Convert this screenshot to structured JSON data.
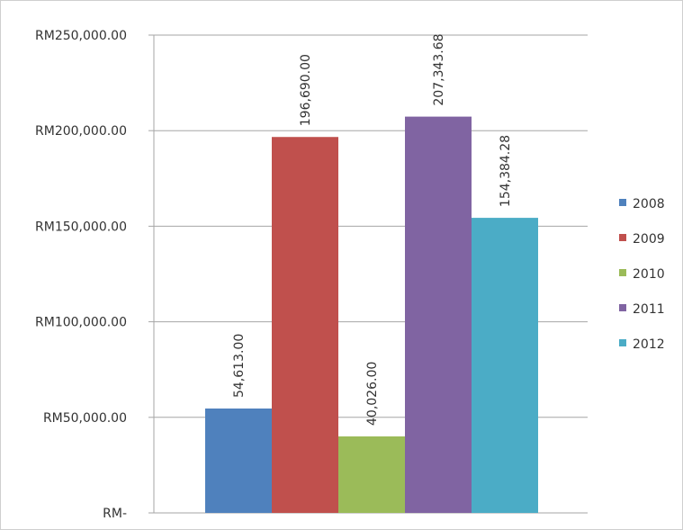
{
  "chart_data": {
    "type": "bar",
    "categories": [
      "2008",
      "2009",
      "2010",
      "2011",
      "2012"
    ],
    "values": [
      54613.0,
      196690.0,
      40026.0,
      207343.68,
      154384.28
    ],
    "data_labels": [
      "54,613.00",
      "196,690.00",
      "40,026.00",
      "207,343.68",
      "154,384.28"
    ],
    "colors": [
      "#4f81bd",
      "#c0504d",
      "#9bbb59",
      "#8064a2",
      "#4bacc6"
    ],
    "title": "",
    "xlabel": "",
    "ylabel": "",
    "ylim": [
      0,
      250000
    ],
    "y_ticks": [
      0,
      50000,
      100000,
      150000,
      200000,
      250000
    ],
    "y_tick_labels": [
      "RM-",
      "RM50,000.00",
      "RM100,000.00",
      "RM150,000.00",
      "RM200,000.00",
      "RM250,000.00"
    ],
    "grid": true,
    "legend": {
      "position": "right",
      "entries": [
        "2008",
        "2009",
        "2010",
        "2011",
        "2012"
      ]
    }
  }
}
